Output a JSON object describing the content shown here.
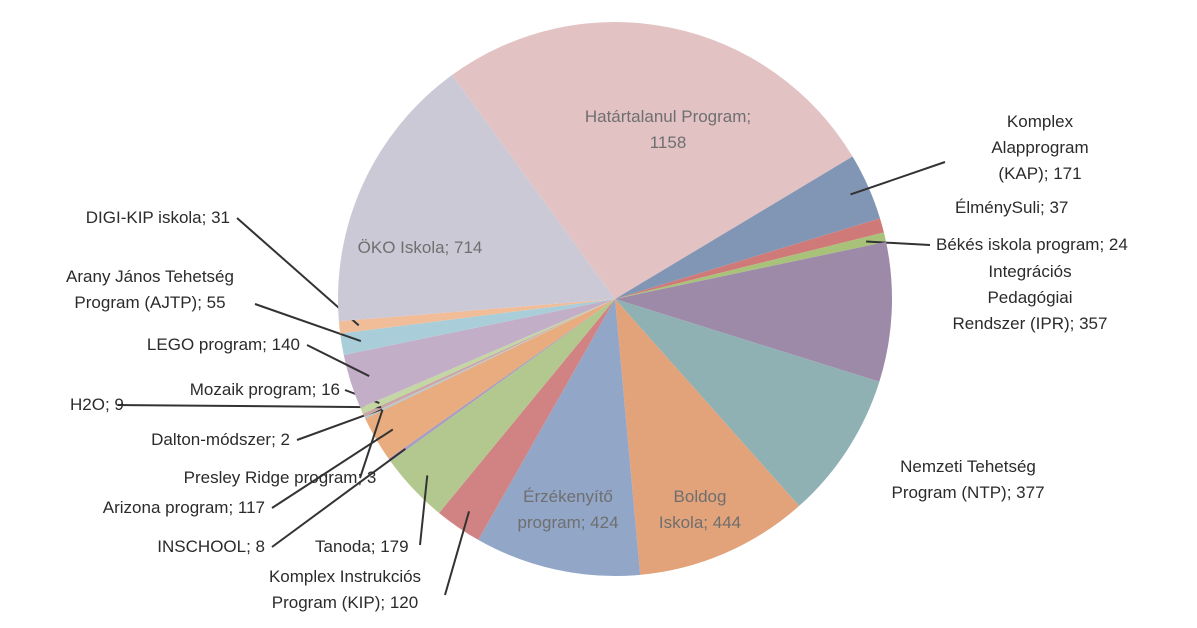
{
  "chart_data": {
    "type": "pie",
    "values": [
      1158,
      171,
      37,
      24,
      357,
      377,
      444,
      424,
      120,
      179,
      8,
      117,
      3,
      2,
      9,
      16,
      140,
      55,
      31,
      714
    ],
    "value_labels": [
      "Határtalanul Program;\n1158",
      "Komplex Alapprogram\n(KAP); 171",
      "ÉlménySuli; 37",
      "Békés iskola program; 24",
      "Integrációs Pedagógiai\nRendszer (IPR); 357",
      "Nemzeti Tehetség\nProgram (NTP); 377",
      "Boldog\nIskola; 444",
      "Érzékenyítő\nprogram; 424",
      "Komplex Instrukciós\nProgram (KIP); 120",
      "Tanoda; 179",
      "INSCHOOL; 8",
      "Arizona program; 117",
      "Presley Ridge program; 3",
      "Dalton-módszer; 2",
      "H2O; 9",
      "Mozaik program; 16",
      "LEGO program; 140",
      "Arany János Tehetség\nProgram (AJTP); 55",
      "DIGI-KIP iskola; 31",
      "ÖKO Iskola; 714"
    ],
    "colors": [
      "#e3c2c3",
      "#8196b5",
      "#cf7a78",
      "#a9c27a",
      "#9d8aa8",
      "#8fb1b4",
      "#e2a27a",
      "#92a6c8",
      "#d18283",
      "#b2c88e",
      "#a89cc0",
      "#e9ac7e",
      "#a8c4cf",
      "#c4c4d2",
      "#c9a7a5",
      "#c5d6a5",
      "#c3aec8",
      "#a9ced9",
      "#f1bc98",
      "#ccc9d6"
    ]
  }
}
